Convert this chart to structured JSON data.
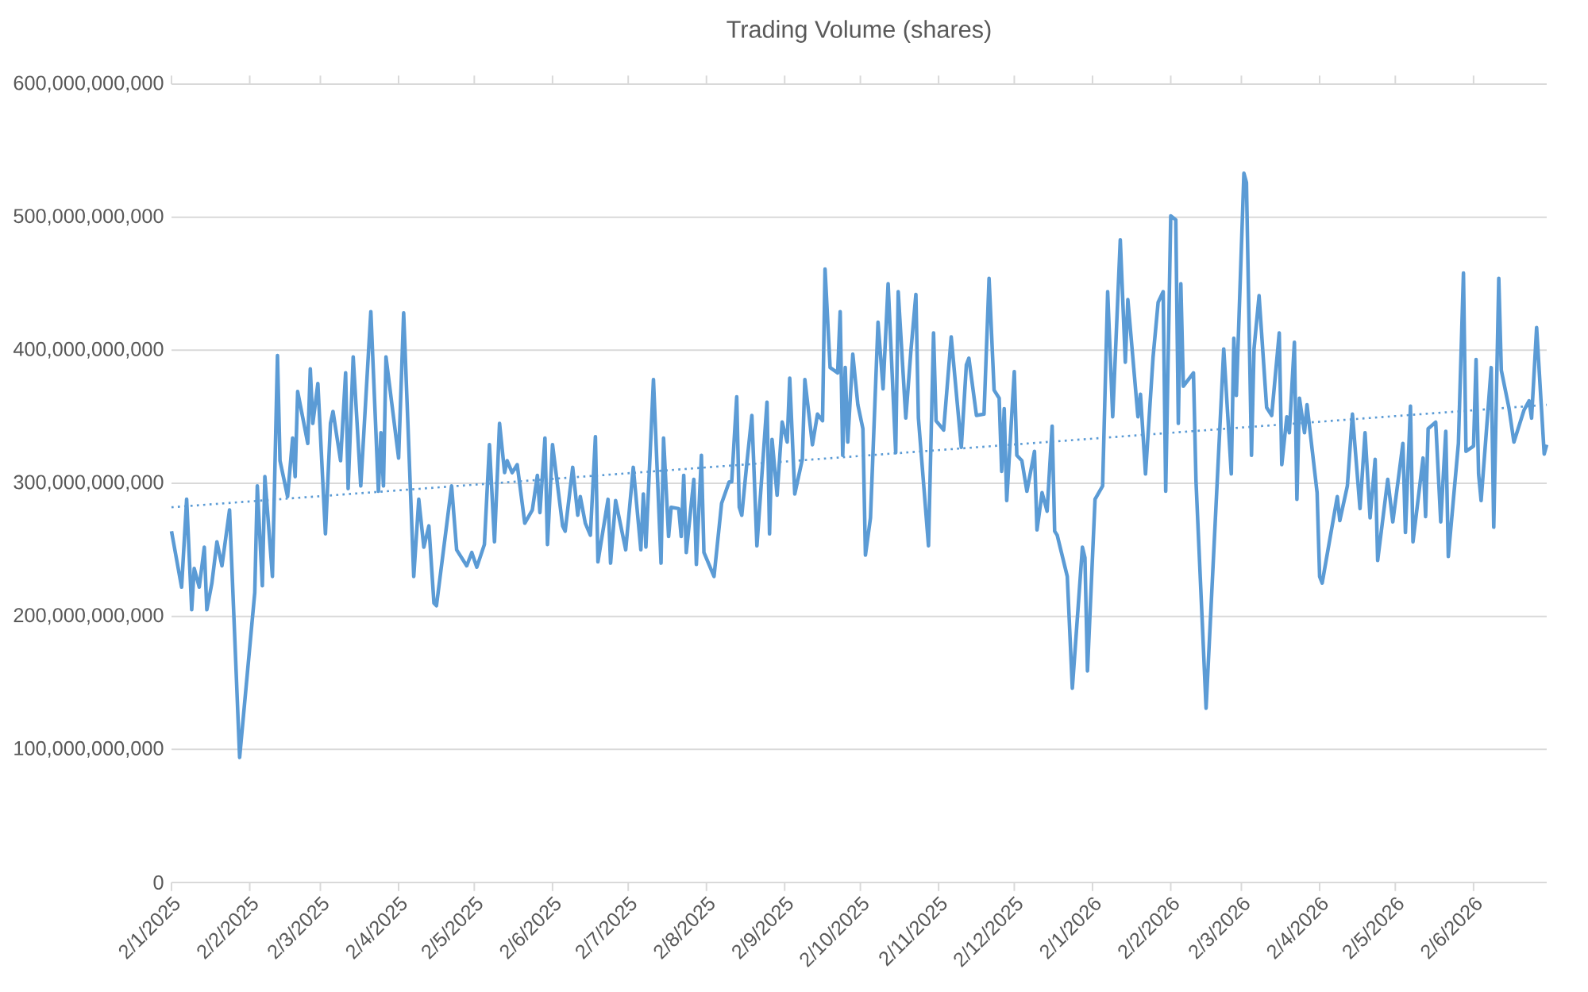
{
  "chart_data": {
    "type": "line",
    "title": "Trading Volume (shares)",
    "x": [
      "2025-01-02",
      "2025-01-06",
      "2025-01-08",
      "2025-01-10",
      "2025-01-11",
      "2025-01-13",
      "2025-01-15",
      "2025-01-16",
      "2025-01-18",
      "2025-01-20",
      "2025-01-22",
      "2025-01-25",
      "2025-01-29",
      "2025-02-04",
      "2025-02-05",
      "2025-02-07",
      "2025-02-08",
      "2025-02-11",
      "2025-02-13",
      "2025-02-14",
      "2025-02-17",
      "2025-02-19",
      "2025-02-20",
      "2025-02-21",
      "2025-02-25",
      "2025-02-26",
      "2025-02-27",
      "2025-03-01",
      "2025-03-04",
      "2025-03-06",
      "2025-03-07",
      "2025-03-10",
      "2025-03-12",
      "2025-03-13",
      "2025-03-15",
      "2025-03-18",
      "2025-03-22",
      "2025-03-25",
      "2025-03-26",
      "2025-03-27",
      "2025-03-28",
      "2025-04-02",
      "2025-04-04",
      "2025-04-08",
      "2025-04-10",
      "2025-04-12",
      "2025-04-14",
      "2025-04-16",
      "2025-04-17",
      "2025-04-23",
      "2025-04-25",
      "2025-04-29",
      "2025-05-01",
      "2025-05-03",
      "2025-05-06",
      "2025-05-08",
      "2025-05-10",
      "2025-05-12",
      "2025-05-14",
      "2025-05-15",
      "2025-05-17",
      "2025-05-19",
      "2025-05-22",
      "2025-05-25",
      "2025-05-27",
      "2025-05-28",
      "2025-05-30",
      "2025-05-31",
      "2025-06-02",
      "2025-06-06",
      "2025-06-07",
      "2025-06-10",
      "2025-06-12",
      "2025-06-13",
      "2025-06-15",
      "2025-06-17",
      "2025-06-19",
      "2025-06-20",
      "2025-06-24",
      "2025-06-25",
      "2025-06-27",
      "2025-07-01",
      "2025-07-04",
      "2025-07-07",
      "2025-07-08",
      "2025-07-09",
      "2025-07-12",
      "2025-07-15",
      "2025-07-16",
      "2025-07-18",
      "2025-07-19",
      "2025-07-22",
      "2025-07-23",
      "2025-07-24",
      "2025-07-25",
      "2025-07-28",
      "2025-07-29",
      "2025-07-31",
      "2025-08-01",
      "2025-08-05",
      "2025-08-08",
      "2025-08-11",
      "2025-08-12",
      "2025-08-14",
      "2025-08-15",
      "2025-08-16",
      "2025-08-18",
      "2025-08-20",
      "2025-08-22",
      "2025-08-26",
      "2025-08-27",
      "2025-08-28",
      "2025-08-30",
      "2025-09-01",
      "2025-09-03",
      "2025-09-04",
      "2025-09-06",
      "2025-09-09",
      "2025-09-10",
      "2025-09-13",
      "2025-09-15",
      "2025-09-17",
      "2025-09-18",
      "2025-09-20",
      "2025-09-23",
      "2025-09-24",
      "2025-09-25",
      "2025-09-26",
      "2025-09-27",
      "2025-09-29",
      "2025-10-01",
      "2025-10-03",
      "2025-10-04",
      "2025-10-06",
      "2025-10-09",
      "2025-10-11",
      "2025-10-13",
      "2025-10-16",
      "2025-10-17",
      "2025-10-20",
      "2025-10-22",
      "2025-10-24",
      "2025-10-25",
      "2025-10-29",
      "2025-10-31",
      "2025-11-01",
      "2025-11-04",
      "2025-11-07",
      "2025-11-11",
      "2025-11-13",
      "2025-11-14",
      "2025-11-17",
      "2025-11-20",
      "2025-11-22",
      "2025-11-24",
      "2025-11-26",
      "2025-11-27",
      "2025-11-28",
      "2025-11-29",
      "2025-12-02",
      "2025-12-03",
      "2025-12-05",
      "2025-12-07",
      "2025-12-10",
      "2025-12-11",
      "2025-12-13",
      "2025-12-15",
      "2025-12-17",
      "2025-12-18",
      "2025-12-19",
      "2025-12-23",
      "2025-12-25",
      "2025-12-29",
      "2025-12-30",
      "2025-12-31",
      "2026-01-03",
      "2026-01-06",
      "2026-01-08",
      "2026-01-10",
      "2026-01-13",
      "2026-01-15",
      "2026-01-16",
      "2026-01-20",
      "2026-01-21",
      "2026-01-23",
      "2026-01-26",
      "2026-01-28",
      "2026-01-30",
      "2026-01-31",
      "2026-02-02",
      "2026-02-04",
      "2026-02-05",
      "2026-02-06",
      "2026-02-07",
      "2026-02-11",
      "2026-02-12",
      "2026-02-16",
      "2026-02-23",
      "2026-02-26",
      "2026-02-27",
      "2026-02-28",
      "2026-03-03",
      "2026-03-04",
      "2026-03-06",
      "2026-03-07",
      "2026-03-09",
      "2026-03-12",
      "2026-03-14",
      "2026-03-17",
      "2026-03-18",
      "2026-03-20",
      "2026-03-21",
      "2026-03-23",
      "2026-03-24",
      "2026-03-25",
      "2026-03-27",
      "2026-03-28",
      "2026-04-01",
      "2026-04-02",
      "2026-04-03",
      "2026-04-09",
      "2026-04-10",
      "2026-04-13",
      "2026-04-15",
      "2026-04-18",
      "2026-04-20",
      "2026-04-22",
      "2026-04-24",
      "2026-04-25",
      "2026-04-29",
      "2026-05-01",
      "2026-05-05",
      "2026-05-06",
      "2026-05-08",
      "2026-05-09",
      "2026-05-13",
      "2026-05-14",
      "2026-05-15",
      "2026-05-18",
      "2026-05-20",
      "2026-05-22",
      "2026-05-23",
      "2026-05-27",
      "2026-05-29",
      "2026-05-30",
      "2026-06-02",
      "2026-06-03",
      "2026-06-04",
      "2026-06-05",
      "2026-06-09",
      "2026-06-10",
      "2026-06-12",
      "2026-06-13",
      "2026-06-16",
      "2026-06-18",
      "2026-06-22",
      "2026-06-24",
      "2026-06-25",
      "2026-06-27",
      "2026-06-30",
      "2026-07-01"
    ],
    "series": [
      {
        "color": "#5b9bd5",
        "values": [
          264000000000,
          222000000000,
          288000000000,
          205000000000,
          236000000000,
          222000000000,
          252000000000,
          205000000000,
          225000000000,
          256000000000,
          238000000000,
          280000000000,
          94000000000,
          218000000000,
          298000000000,
          223000000000,
          305000000000,
          230000000000,
          396000000000,
          317000000000,
          290000000000,
          334000000000,
          305000000000,
          369000000000,
          330000000000,
          386000000000,
          345000000000,
          375000000000,
          262000000000,
          345000000000,
          354000000000,
          317000000000,
          383000000000,
          296000000000,
          395000000000,
          298000000000,
          429000000000,
          294000000000,
          338000000000,
          298000000000,
          395000000000,
          319000000000,
          428000000000,
          230000000000,
          288000000000,
          252000000000,
          268000000000,
          210000000000,
          208000000000,
          298000000000,
          250000000000,
          238000000000,
          248000000000,
          237000000000,
          254000000000,
          329000000000,
          256000000000,
          345000000000,
          308000000000,
          317000000000,
          308000000000,
          314000000000,
          270000000000,
          280000000000,
          306000000000,
          278000000000,
          334000000000,
          254000000000,
          329000000000,
          268000000000,
          264000000000,
          312000000000,
          276000000000,
          290000000000,
          270000000000,
          261000000000,
          335000000000,
          241000000000,
          288000000000,
          240000000000,
          287000000000,
          250000000000,
          312000000000,
          250000000000,
          292000000000,
          252000000000,
          378000000000,
          240000000000,
          334000000000,
          260000000000,
          282000000000,
          281000000000,
          260000000000,
          306000000000,
          248000000000,
          303000000000,
          239000000000,
          321000000000,
          248000000000,
          230000000000,
          285000000000,
          301000000000,
          301000000000,
          365000000000,
          282000000000,
          276000000000,
          315000000000,
          351000000000,
          253000000000,
          361000000000,
          262000000000,
          333000000000,
          291000000000,
          346000000000,
          331000000000,
          379000000000,
          292000000000,
          318000000000,
          378000000000,
          329000000000,
          352000000000,
          347000000000,
          461000000000,
          387000000000,
          383000000000,
          429000000000,
          321000000000,
          387000000000,
          331000000000,
          397000000000,
          359000000000,
          341000000000,
          246000000000,
          274000000000,
          421000000000,
          371000000000,
          450000000000,
          323000000000,
          444000000000,
          349000000000,
          399000000000,
          442000000000,
          349000000000,
          253000000000,
          413000000000,
          347000000000,
          340000000000,
          410000000000,
          327000000000,
          389000000000,
          394000000000,
          351000000000,
          352000000000,
          454000000000,
          370000000000,
          364000000000,
          309000000000,
          356000000000,
          287000000000,
          384000000000,
          321000000000,
          317000000000,
          294000000000,
          324000000000,
          265000000000,
          293000000000,
          279000000000,
          343000000000,
          264000000000,
          261000000000,
          230000000000,
          146000000000,
          252000000000,
          244000000000,
          159000000000,
          288000000000,
          298000000000,
          444000000000,
          350000000000,
          483000000000,
          391000000000,
          438000000000,
          350000000000,
          367000000000,
          307000000000,
          395000000000,
          436000000000,
          444000000000,
          294000000000,
          501000000000,
          498000000000,
          345000000000,
          450000000000,
          373000000000,
          383000000000,
          302000000000,
          131000000000,
          401000000000,
          307000000000,
          409000000000,
          366000000000,
          533000000000,
          526000000000,
          321000000000,
          401000000000,
          441000000000,
          357000000000,
          351000000000,
          413000000000,
          314000000000,
          350000000000,
          338000000000,
          406000000000,
          288000000000,
          364000000000,
          338000000000,
          359000000000,
          293000000000,
          230000000000,
          225000000000,
          290000000000,
          272000000000,
          298000000000,
          352000000000,
          281000000000,
          338000000000,
          274000000000,
          318000000000,
          242000000000,
          303000000000,
          271000000000,
          330000000000,
          263000000000,
          358000000000,
          256000000000,
          319000000000,
          275000000000,
          341000000000,
          346000000000,
          271000000000,
          339000000000,
          245000000000,
          330000000000,
          458000000000,
          324000000000,
          328000000000,
          393000000000,
          307000000000,
          287000000000,
          387000000000,
          267000000000,
          454000000000,
          385000000000,
          357000000000,
          331000000000,
          355000000000,
          362000000000,
          349000000000,
          417000000000,
          322000000000,
          329000000000
        ]
      },
      {
        "type": "line",
        "color": "#5b9bd5",
        "line_style": "dotted",
        "x": [
          "2025-01-02",
          "2026-07-01"
        ],
        "values": [
          282000000000,
          359000000000
        ]
      }
    ],
    "xlim": [
      "2025-01-02",
      "2026-07-01"
    ],
    "xticks": [
      {
        "value": "2025-01-02",
        "label": "2/1/2025"
      },
      {
        "value": "2025-02-02",
        "label": "2/2/2025"
      },
      {
        "value": "2025-03-02",
        "label": "2/3/2025"
      },
      {
        "value": "2025-04-02",
        "label": "2/4/2025"
      },
      {
        "value": "2025-05-02",
        "label": "2/5/2025"
      },
      {
        "value": "2025-06-02",
        "label": "2/6/2025"
      },
      {
        "value": "2025-07-02",
        "label": "2/7/2025"
      },
      {
        "value": "2025-08-02",
        "label": "2/8/2025"
      },
      {
        "value": "2025-09-02",
        "label": "2/9/2025"
      },
      {
        "value": "2025-10-02",
        "label": "2/10/2025"
      },
      {
        "value": "2025-11-02",
        "label": "2/11/2025"
      },
      {
        "value": "2025-12-02",
        "label": "2/12/2025"
      },
      {
        "value": "2026-01-02",
        "label": "2/1/2026"
      },
      {
        "value": "2026-02-02",
        "label": "2/2/2026"
      },
      {
        "value": "2026-03-02",
        "label": "2/3/2026"
      },
      {
        "value": "2026-04-02",
        "label": "2/4/2026"
      },
      {
        "value": "2026-05-02",
        "label": "2/5/2026"
      },
      {
        "value": "2026-06-02",
        "label": "2/6/2026"
      }
    ],
    "ylim": [
      0,
      600000000000
    ],
    "yticks": [
      0,
      {
        "value": 100000000000,
        "label": "100,000,000,000"
      },
      {
        "value": 200000000000,
        "label": "200,000,000,000"
      },
      {
        "value": 300000000000,
        "label": "300,000,000,000"
      },
      {
        "value": 400000000000,
        "label": "400,000,000,000"
      },
      {
        "value": 500000000000,
        "label": "500,000,000,000"
      },
      {
        "value": 600000000000,
        "label": "600,000,000,000"
      }
    ],
    "grid": "y"
  }
}
